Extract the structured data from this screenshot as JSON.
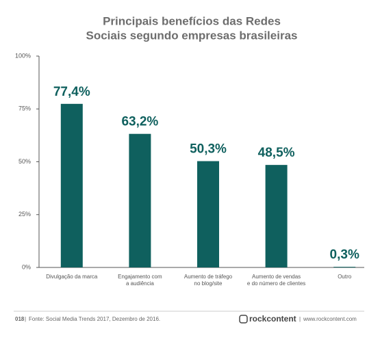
{
  "chart_data": {
    "type": "bar",
    "title": [
      "Principais benefícios das Redes",
      "Sociais segundo empresas brasileiras"
    ],
    "categories": [
      [
        "Divulgação da marca"
      ],
      [
        "Engajamento com",
        "a audiência"
      ],
      [
        "Aumento de tráfego",
        "no blog/site"
      ],
      [
        "Aumento de vendas",
        "e do número de clientes"
      ],
      [
        "Outro"
      ]
    ],
    "values": [
      77.4,
      63.2,
      50.3,
      48.5,
      0.3
    ],
    "value_labels": [
      "77,4%",
      "63,2%",
      "50,3%",
      "48,5%",
      "0,3%"
    ],
    "color": "#0f605e",
    "ylim": [
      0,
      100
    ],
    "yticks": [
      {
        "value": 0,
        "label": "0%"
      },
      {
        "value": 25,
        "label": "25%"
      },
      {
        "value": 50,
        "label": "50%"
      },
      {
        "value": 75,
        "label": "75%"
      },
      {
        "value": 100,
        "label": "100%"
      }
    ],
    "grid": false
  },
  "footer": {
    "page": "018",
    "source": "Fonte: Social Media Trends 2017, Dezembro de 2016.",
    "brand": "rockcontent",
    "url": "www.rockcontent.com"
  }
}
